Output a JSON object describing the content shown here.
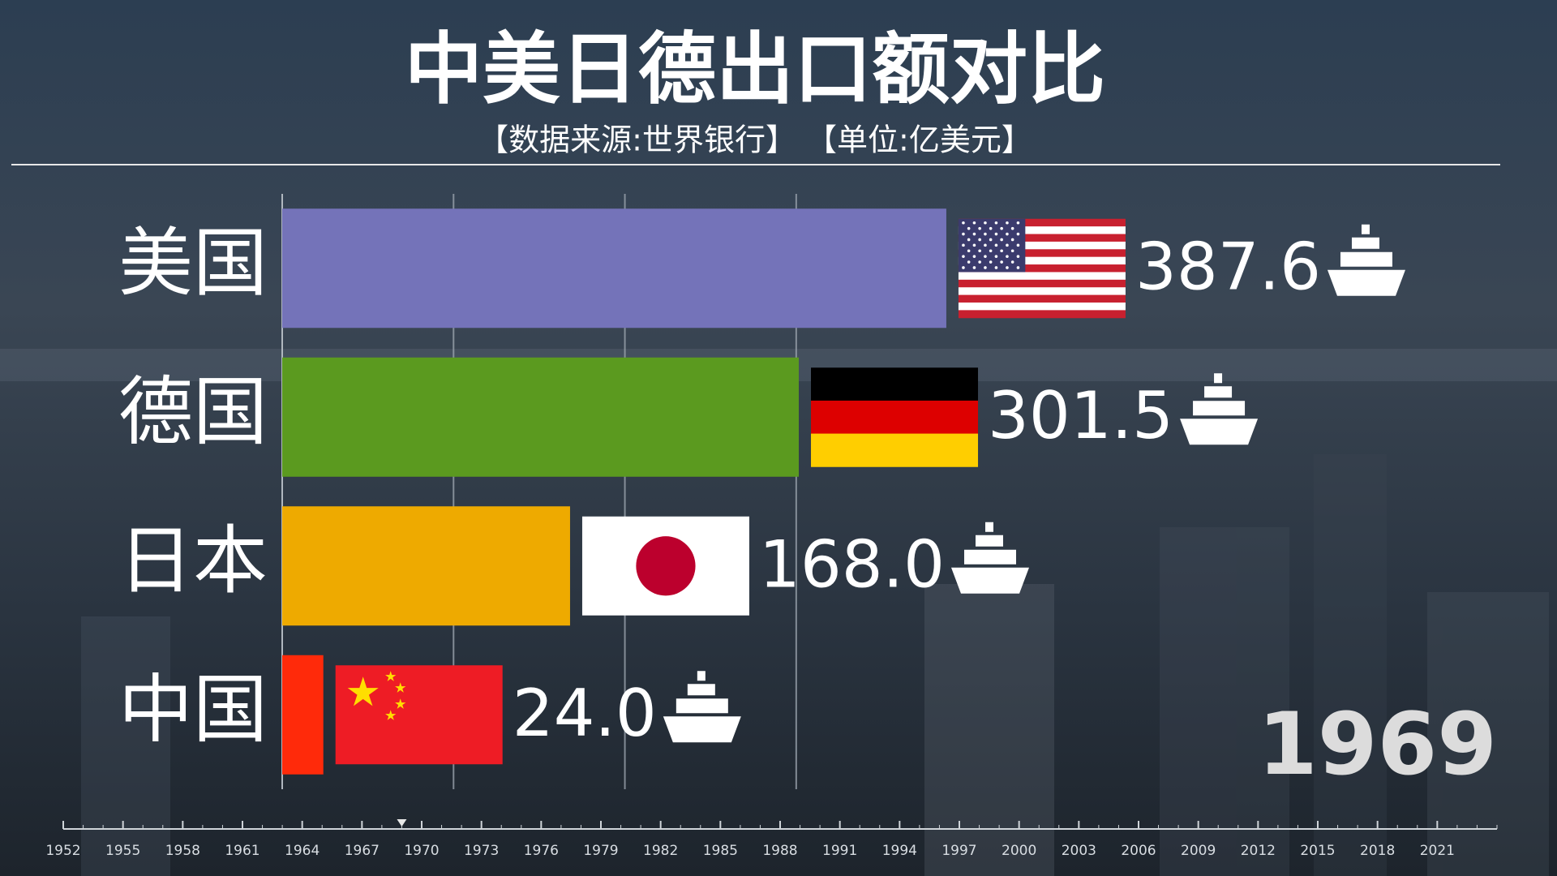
{
  "chart_data": {
    "type": "bar",
    "orientation": "horizontal",
    "title": "中美日德出口额对比",
    "subtitle": "【数据来源:世界银行】 【单位:亿美元】",
    "categories": [
      "美国",
      "德国",
      "日本",
      "中国"
    ],
    "values": [
      387.6,
      301.5,
      168.0,
      24.0
    ],
    "value_labels": [
      "387.6",
      "301.5",
      "168.0",
      "24.0"
    ],
    "colors": [
      "#7473b9",
      "#5b9a1f",
      "#eeaa00",
      "#ff2a0a"
    ],
    "xlim": [
      0,
      700
    ],
    "xticks": [
      100,
      200,
      300
    ],
    "grid": true,
    "year": 1969,
    "timeline": {
      "xlim": [
        1952,
        2024
      ],
      "ticks": [
        1952,
        1955,
        1958,
        1961,
        1964,
        1967,
        1970,
        1973,
        1976,
        1979,
        1982,
        1985,
        1988,
        1991,
        1994,
        1997,
        2000,
        2003,
        2006,
        2009,
        2012,
        2015,
        2018,
        2021
      ]
    }
  }
}
